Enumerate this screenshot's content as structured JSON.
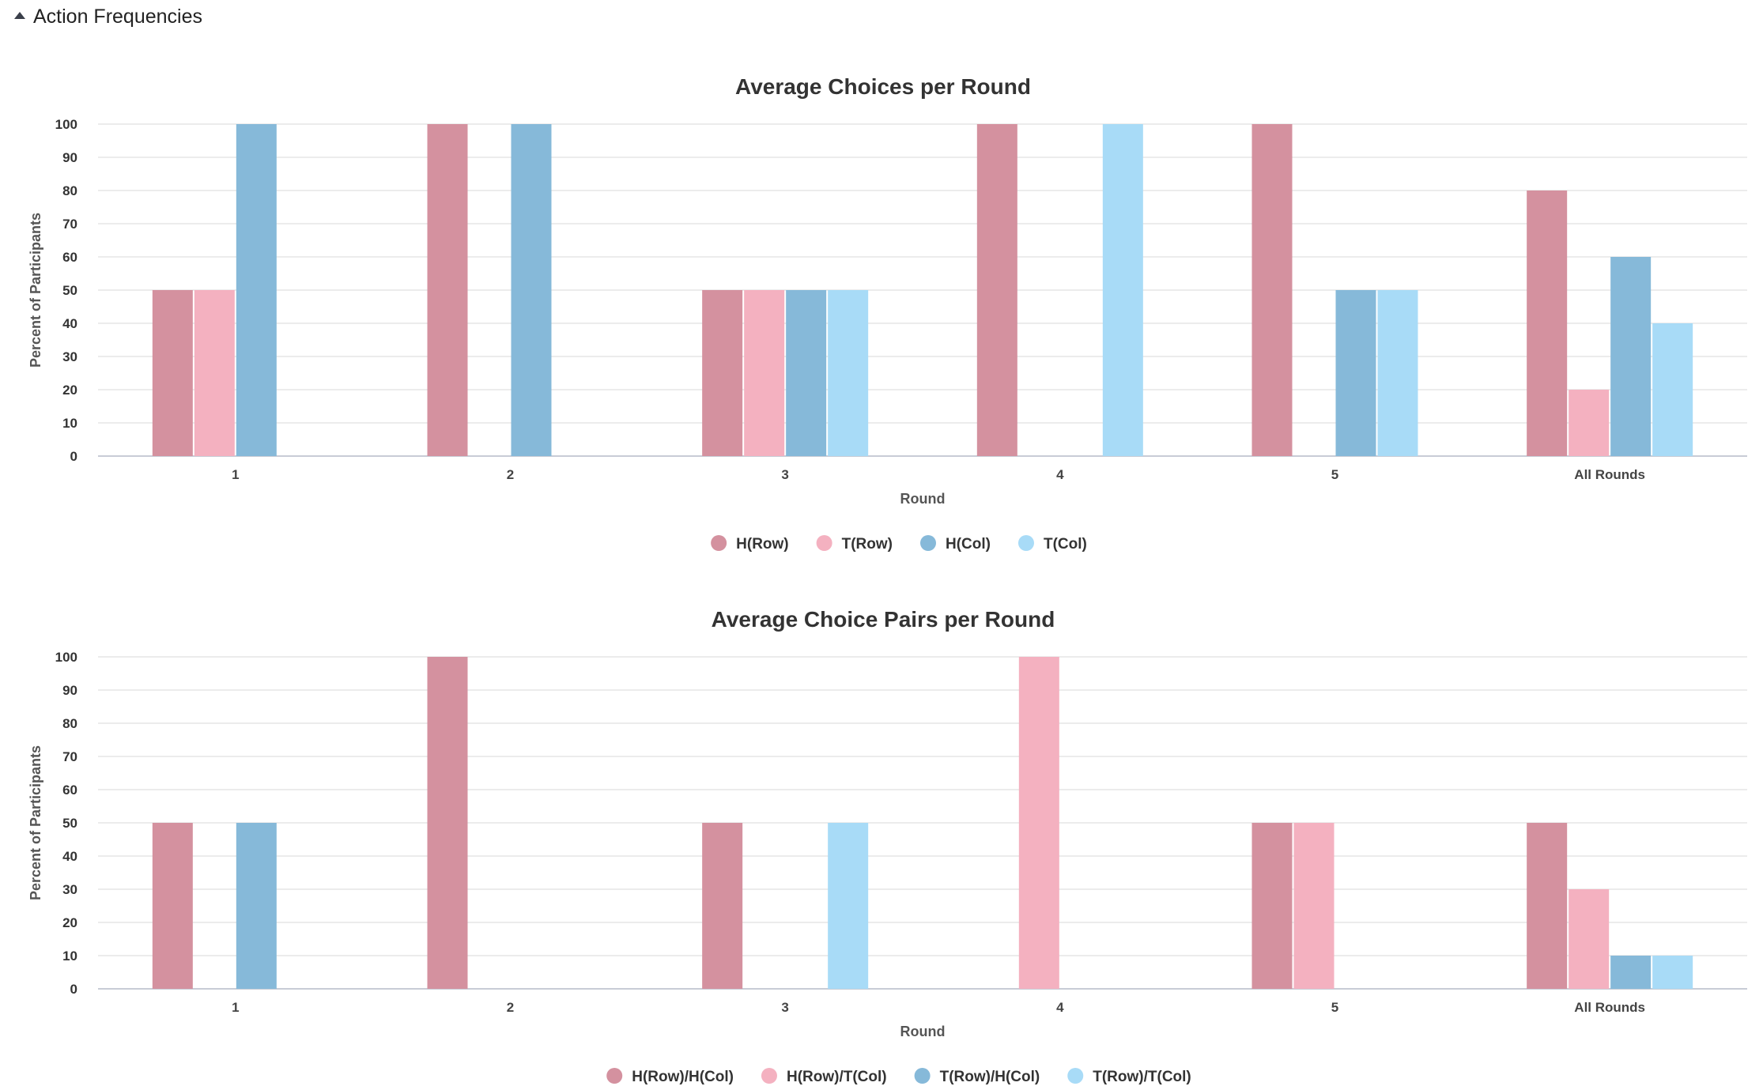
{
  "section": {
    "title": "Action Frequencies"
  },
  "chart_data": [
    {
      "type": "bar",
      "title": "Average Choices per Round",
      "xlabel": "Round",
      "ylabel": "Percent of Participants",
      "ylim": [
        0,
        100
      ],
      "yticks": [
        0,
        10,
        20,
        30,
        40,
        50,
        60,
        70,
        80,
        90,
        100
      ],
      "grid": true,
      "legend_position": "bottom-center",
      "categories": [
        "1",
        "2",
        "3",
        "4",
        "5",
        "All Rounds"
      ],
      "series": [
        {
          "name": "H(Row)",
          "color": "#d4919f",
          "values": [
            50,
            100,
            50,
            100,
            100,
            80
          ]
        },
        {
          "name": "T(Row)",
          "color": "#f4b1c0",
          "values": [
            50,
            0,
            50,
            0,
            0,
            20
          ]
        },
        {
          "name": "H(Col)",
          "color": "#86b9d9",
          "values": [
            100,
            100,
            50,
            0,
            50,
            60
          ]
        },
        {
          "name": "T(Col)",
          "color": "#a8dbf7",
          "values": [
            0,
            0,
            50,
            100,
            50,
            40
          ]
        }
      ]
    },
    {
      "type": "bar",
      "title": "Average Choice Pairs per Round",
      "xlabel": "Round",
      "ylabel": "Percent of Participants",
      "ylim": [
        0,
        100
      ],
      "yticks": [
        0,
        10,
        20,
        30,
        40,
        50,
        60,
        70,
        80,
        90,
        100
      ],
      "grid": true,
      "legend_position": "bottom-center",
      "categories": [
        "1",
        "2",
        "3",
        "4",
        "5",
        "All Rounds"
      ],
      "series": [
        {
          "name": "H(Row)/H(Col)",
          "color": "#d4919f",
          "values": [
            50,
            100,
            50,
            0,
            50,
            50
          ]
        },
        {
          "name": "H(Row)/T(Col)",
          "color": "#f4b1c0",
          "values": [
            0,
            0,
            0,
            100,
            50,
            30
          ]
        },
        {
          "name": "T(Row)/H(Col)",
          "color": "#86b9d9",
          "values": [
            50,
            0,
            0,
            0,
            0,
            10
          ]
        },
        {
          "name": "T(Row)/T(Col)",
          "color": "#a8dbf7",
          "values": [
            0,
            0,
            50,
            0,
            0,
            10
          ]
        }
      ]
    }
  ]
}
